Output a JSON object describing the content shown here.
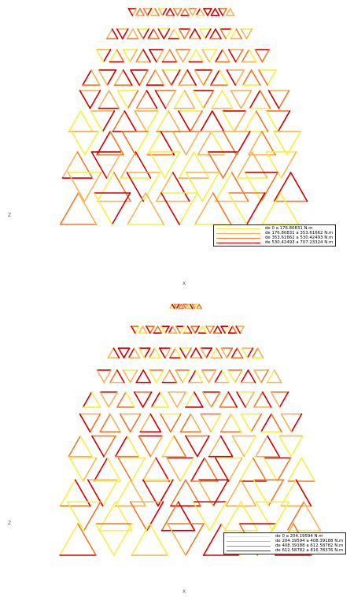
{
  "axes": {
    "vertical_label": "Z",
    "horizontal_label": "X"
  },
  "panels": [
    {
      "legend": [
        {
          "label": "de 0 a 176.80831 N.m",
          "color": "#f6f045"
        },
        {
          "label": "de 176.80831 a 353.61662 N.m",
          "color": "#f5b45a"
        },
        {
          "label": "de 353.61662 a 530.42493 N.m",
          "color": "#ef7a2a"
        },
        {
          "label": "de 530.42493 a 707.23324 N.m",
          "color": "#d40000"
        }
      ]
    },
    {
      "legend": [
        {
          "label": "de 0 a 204.19594 N.m",
          "color": "#f6f045"
        },
        {
          "label": "de 204.19594 a 408.39188 N.m",
          "color": "#f5b45a"
        },
        {
          "label": "de 408.39188 a 612.58782 N.m",
          "color": "#ef7a2a"
        },
        {
          "label": "de 612.58782 a 816.78376 N.m",
          "color": "#d40000"
        }
      ]
    }
  ]
}
